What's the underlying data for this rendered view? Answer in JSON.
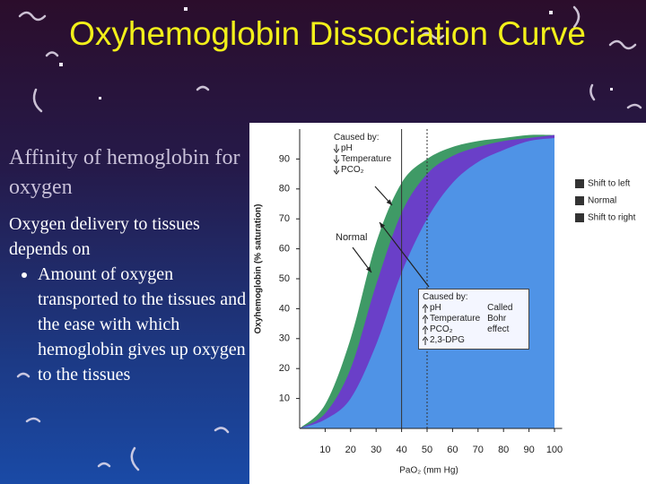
{
  "slide": {
    "title": "Oxyhemoglobin Dissociation Curve",
    "heading": "Affinity of hemoglobin for oxygen",
    "text": "Oxygen delivery to tissues depends on",
    "bullets": [
      "Amount of oxygen transported to the tissues and the ease with which hemoglobin gives up oxygen to the tissues"
    ]
  },
  "chart_data": {
    "type": "area",
    "x_label": "PaO₂ (mm Hg)",
    "y_label": "Oxyhemoglobin (% saturation)",
    "x": [
      0,
      10,
      20,
      30,
      40,
      50,
      60,
      70,
      80,
      90,
      100
    ],
    "series": [
      {
        "name": "Shift to left",
        "color": "#3f9a66",
        "values": [
          0,
          8,
          30,
          62,
          82,
          90,
          94,
          96,
          97,
          98,
          98
        ]
      },
      {
        "name": "Normal",
        "color": "#6a3fc8",
        "values": [
          0,
          5,
          20,
          48,
          72,
          85,
          91,
          94,
          96,
          97,
          98
        ]
      },
      {
        "name": "Shift to right",
        "color": "#4f93e6",
        "values": [
          0,
          3,
          10,
          28,
          52,
          70,
          82,
          89,
          93,
          96,
          97
        ]
      }
    ],
    "xlim": [
      0,
      103
    ],
    "ylim": [
      0,
      100
    ],
    "xticks": [
      10,
      20,
      30,
      40,
      50,
      60,
      70,
      80,
      90,
      100
    ],
    "yticks": [
      10,
      20,
      30,
      40,
      50,
      60,
      70,
      80,
      90
    ],
    "vlines": [
      40,
      50
    ],
    "legend": "right",
    "legend_swatch_color": "#333",
    "normal_label": "Normal",
    "annotations": [
      {
        "title": "Caused by:",
        "direction": "down",
        "items": [
          "pH",
          "Temperature",
          "PCO₂"
        ]
      },
      {
        "title": "Caused by:",
        "direction": "up",
        "items": [
          "pH",
          "Temperature",
          "PCO₂",
          "2,3-DPG"
        ],
        "note": "Called Bohr effect"
      }
    ]
  }
}
